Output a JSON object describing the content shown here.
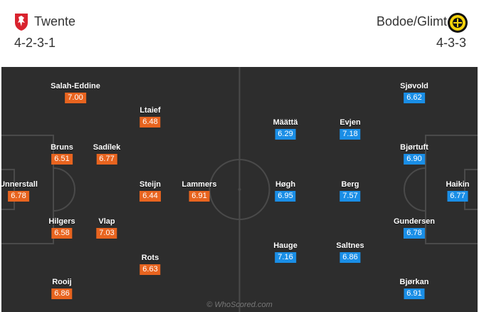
{
  "home": {
    "name": "Twente",
    "formation": "4-2-3-1",
    "color": "#e8641f",
    "players": [
      {
        "name": "Unnerstall",
        "rating": "6.78"
      },
      {
        "name": "Salah-Eddine",
        "rating": "7.00"
      },
      {
        "name": "Bruns",
        "rating": "6.51"
      },
      {
        "name": "Hilgers",
        "rating": "6.58"
      },
      {
        "name": "Rooij",
        "rating": "6.86"
      },
      {
        "name": "Sadílek",
        "rating": "6.77"
      },
      {
        "name": "Vlap",
        "rating": "7.03"
      },
      {
        "name": "Ltaief",
        "rating": "6.48"
      },
      {
        "name": "Steijn",
        "rating": "6.44"
      },
      {
        "name": "Rots",
        "rating": "6.63"
      },
      {
        "name": "Lammers",
        "rating": "6.91"
      }
    ]
  },
  "away": {
    "name": "Bodoe/Glimt",
    "formation": "4-3-3",
    "color": "#1a8ee6",
    "players": [
      {
        "name": "Haikin",
        "rating": "6.77"
      },
      {
        "name": "Sjøvold",
        "rating": "6.62"
      },
      {
        "name": "Bjørtuft",
        "rating": "6.90"
      },
      {
        "name": "Gundersen",
        "rating": "6.78"
      },
      {
        "name": "Bjørkan",
        "rating": "6.91"
      },
      {
        "name": "Evjen",
        "rating": "7.18"
      },
      {
        "name": "Berg",
        "rating": "7.57"
      },
      {
        "name": "Saltnes",
        "rating": "6.86"
      },
      {
        "name": "Määttä",
        "rating": "6.29"
      },
      {
        "name": "Høgh",
        "rating": "6.95"
      },
      {
        "name": "Hauge",
        "rating": "7.16"
      }
    ]
  },
  "watermark": "© WhoScored.com",
  "pitch_color": "#2d2d2d",
  "line_color": "#4a4a4a"
}
